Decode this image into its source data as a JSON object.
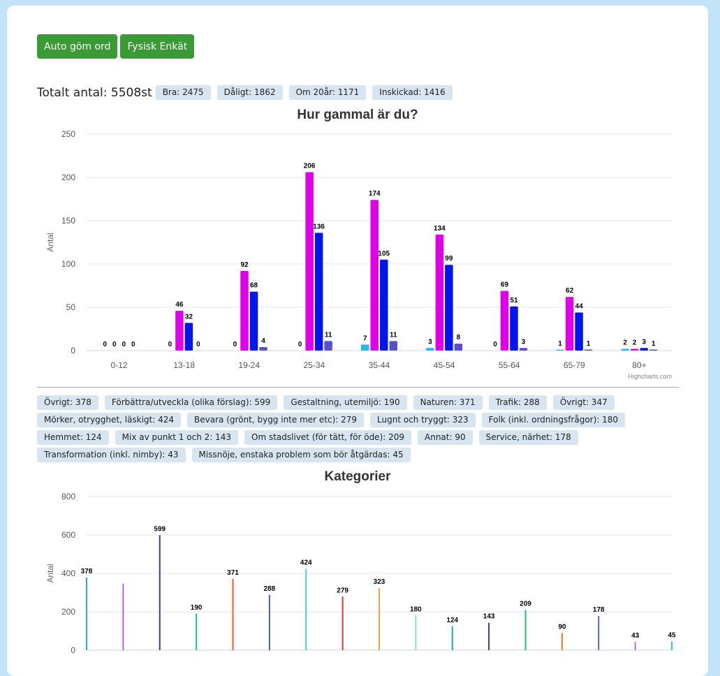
{
  "toolbar": {
    "auto_hide_label": "Auto göm ord",
    "physical_survey_label": "Fysisk Enkät"
  },
  "summary": {
    "total_text": "Totalt antal: 5508st",
    "badges": [
      "Bra: 2475",
      "Dåligt: 1862",
      "Om 20år: 1171",
      "Inskickad: 1416"
    ]
  },
  "colors": {
    "button": "#3a9a35",
    "badge_bg": "#d6e5f0",
    "page_bg": "#c3e3f8"
  },
  "category_badges": [
    "Övrigt: 378",
    "Förbättra/utveckla (olika förslag): 599",
    "Gestaltning, utemiljö: 190",
    "Naturen: 371",
    "Trafik: 288",
    "Övrigt: 347",
    "Mörker, otrygghet, läskigt: 424",
    "Bevara (grönt, bygg inte mer etc): 279",
    "Lugnt och tryggt: 323",
    "Folk (inkl. ordningsfrågor): 180",
    "Hemmet: 124",
    "Mix av punkt 1 och 2: 143",
    "Om stadslivet (för tätt, för öde): 209",
    "Annat: 90",
    "Service, närhet: 178",
    "Transformation (inkl. nimby): 43",
    "Missnöje, enstaka problem som bör åtgärdas: 45"
  ],
  "chart_data": [
    {
      "type": "bar",
      "title": "Hur gammal är du?",
      "ylabel": "Antal",
      "xlabel": "",
      "ylim": [
        0,
        250
      ],
      "yticks": [
        0,
        50,
        100,
        150,
        200,
        250
      ],
      "grid": true,
      "credits": "Highcharts.com",
      "categories": [
        "0-12",
        "13-18",
        "19-24",
        "25-34",
        "35-44",
        "45-54",
        "55-64",
        "65-79",
        "80+"
      ],
      "series": [
        {
          "color": "#29b6f6",
          "values": [
            0,
            0,
            0,
            0,
            7,
            3,
            0,
            1,
            2
          ]
        },
        {
          "color": "#e000e8",
          "values": [
            0,
            46,
            92,
            206,
            174,
            134,
            69,
            62,
            2
          ]
        },
        {
          "color": "#0016ee",
          "values": [
            0,
            32,
            68,
            136,
            105,
            99,
            51,
            44,
            3
          ]
        },
        {
          "color": "#5b4fc9",
          "values": [
            0,
            0,
            4,
            11,
            11,
            8,
            3,
            1,
            1
          ]
        }
      ]
    },
    {
      "type": "bar",
      "title": "Kategorier",
      "ylabel": "Antal",
      "xlabel": "",
      "ylim": [
        0,
        800
      ],
      "yticks": [
        0,
        200,
        400,
        600,
        800
      ],
      "grid": true,
      "values": [
        378,
        347,
        599,
        190,
        371,
        288,
        424,
        279,
        323,
        180,
        124,
        143,
        209,
        90,
        178,
        43,
        45
      ],
      "labels_shown": [
        true,
        false,
        true,
        true,
        true,
        true,
        true,
        true,
        true,
        true,
        true,
        true,
        true,
        true,
        true,
        true,
        true
      ],
      "colors": [
        "#3fa0d8",
        "#c45ce8",
        "#3b3a9c",
        "#1dc47a",
        "#f25d2e",
        "#4a5ea8",
        "#3dd4c4",
        "#e8352a",
        "#f5a04a",
        "#8ee0d0",
        "#2a9cc8",
        "#3b3a8c",
        "#18c860",
        "#f07a20",
        "#5a6aa8",
        "#c068e0",
        "#30c8d8"
      ]
    }
  ]
}
